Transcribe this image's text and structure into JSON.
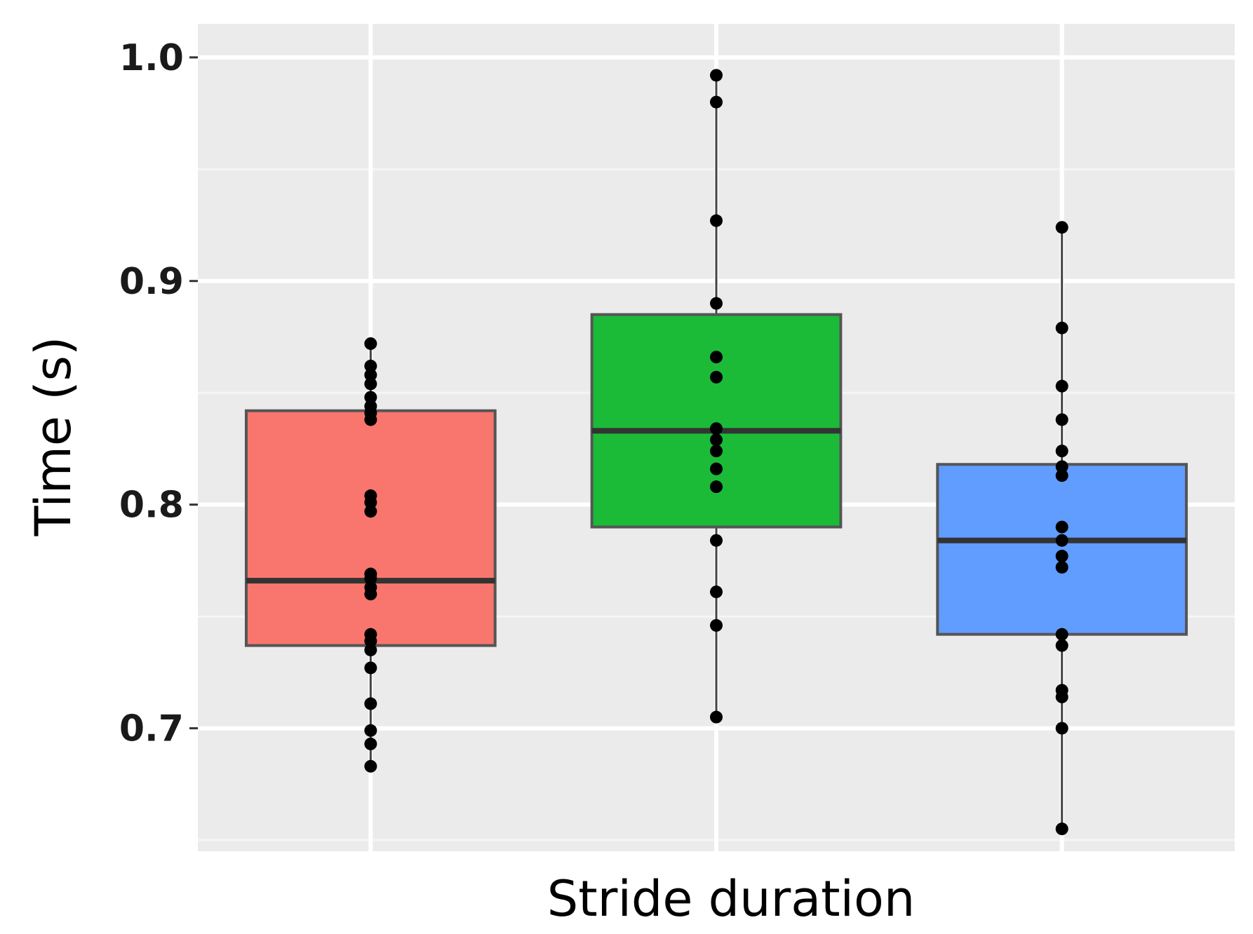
{
  "chart_data": {
    "type": "boxplot",
    "title": "",
    "xlabel": "Stride duration",
    "ylabel": "Time (s)",
    "ylim": [
      0.645,
      1.015
    ],
    "yticks": [
      0.7,
      0.8,
      0.9,
      1.0
    ],
    "ytick_labels": [
      "0.7",
      "0.8",
      "0.9",
      "1.0"
    ],
    "grid": true,
    "background": "#ebebeb",
    "legend": "none",
    "boxes": [
      {
        "color": "#f8766d",
        "q1": 0.737,
        "median": 0.766,
        "q3": 0.842,
        "whisker_low": 0.683,
        "whisker_high": 0.872,
        "points": [
          0.683,
          0.693,
          0.699,
          0.711,
          0.727,
          0.735,
          0.739,
          0.742,
          0.76,
          0.763,
          0.767,
          0.769,
          0.797,
          0.801,
          0.804,
          0.838,
          0.841,
          0.844,
          0.848,
          0.854,
          0.858,
          0.862,
          0.872
        ]
      },
      {
        "color": "#1bbb38",
        "q1": 0.79,
        "median": 0.833,
        "q3": 0.885,
        "whisker_low": 0.705,
        "whisker_high": 0.992,
        "points": [
          0.705,
          0.746,
          0.761,
          0.784,
          0.808,
          0.816,
          0.824,
          0.829,
          0.834,
          0.857,
          0.866,
          0.89,
          0.927,
          0.98,
          0.992
        ]
      },
      {
        "color": "#619cff",
        "q1": 0.742,
        "median": 0.784,
        "q3": 0.818,
        "whisker_low": 0.655,
        "whisker_high": 0.924,
        "points": [
          0.655,
          0.7,
          0.714,
          0.717,
          0.737,
          0.742,
          0.772,
          0.777,
          0.784,
          0.79,
          0.813,
          0.817,
          0.824,
          0.838,
          0.853,
          0.879,
          0.924
        ]
      }
    ]
  }
}
